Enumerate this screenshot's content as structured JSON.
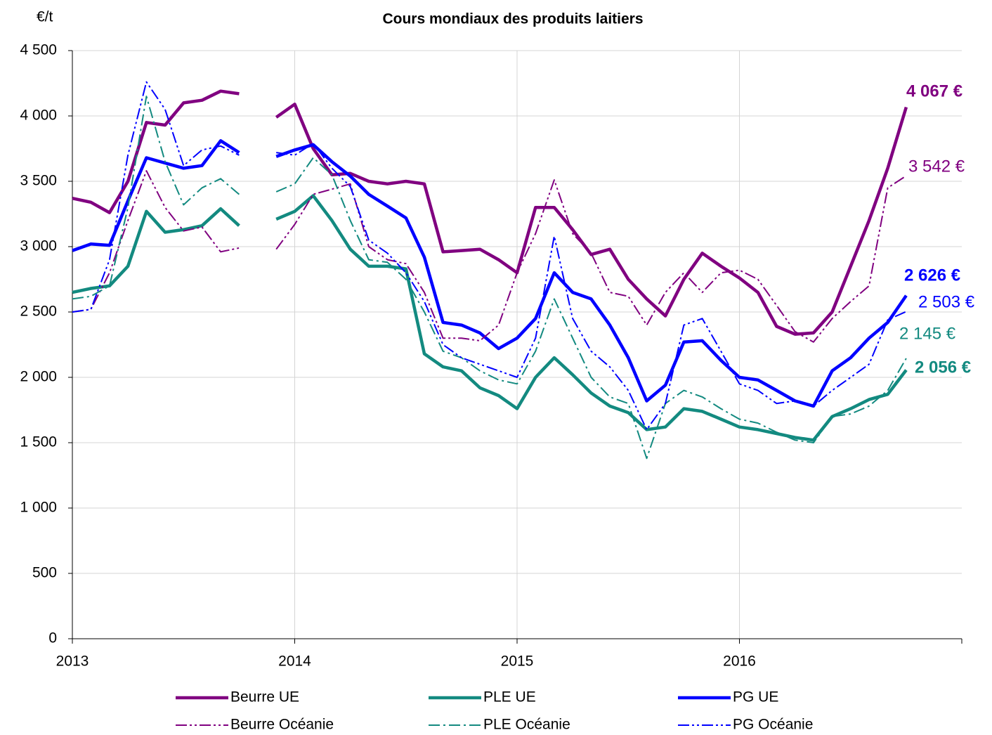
{
  "chart_data": {
    "type": "line",
    "title": "Cours mondiaux des produits laitiers",
    "y_label": "€/t",
    "x": [
      2013,
      2013.083,
      2013.167,
      2013.25,
      2013.333,
      2013.417,
      2013.5,
      2013.583,
      2013.667,
      2013.75,
      2013.833,
      2013.917,
      2014,
      2014.083,
      2014.167,
      2014.25,
      2014.333,
      2014.417,
      2014.5,
      2014.583,
      2014.667,
      2014.75,
      2014.833,
      2014.917,
      2015,
      2015.083,
      2015.167,
      2015.25,
      2015.333,
      2015.417,
      2015.5,
      2015.583,
      2015.667,
      2015.75,
      2015.833,
      2015.917,
      2016,
      2016.083,
      2016.167,
      2016.25,
      2016.333,
      2016.417,
      2016.5,
      2016.583,
      2016.667,
      2016.75
    ],
    "xlim": [
      2013,
      2017
    ],
    "xticks": [
      2013,
      2014,
      2015,
      2016
    ],
    "ylim": [
      0,
      4500
    ],
    "yticks": [
      0,
      500,
      {
        "value": 1000,
        "label": "1 000"
      },
      {
        "value": 1500,
        "label": "1 500"
      },
      {
        "value": 2000,
        "label": "2 000"
      },
      {
        "value": 2500,
        "label": "2 500"
      },
      {
        "value": 3000,
        "label": "3 000"
      },
      {
        "value": 3500,
        "label": "3 500"
      },
      {
        "value": 4000,
        "label": "4 000"
      },
      {
        "value": 4500,
        "label": "4 500"
      }
    ],
    "grid": true,
    "series": [
      {
        "name": "Beurre UE",
        "color": "#800080",
        "style": "solid",
        "width": 4.5,
        "end_label": "4 067 €",
        "bold_label": true,
        "values": [
          3370,
          3340,
          3260,
          3500,
          3950,
          3930,
          4100,
          4120,
          4190,
          4170,
          null,
          3990,
          4090,
          3750,
          3550,
          3560,
          3500,
          3480,
          3500,
          3480,
          2960,
          2970,
          2980,
          2900,
          2800,
          3300,
          3300,
          3130,
          2940,
          2980,
          2750,
          2600,
          2470,
          2750,
          2950,
          2850,
          2760,
          2650,
          2390,
          2330,
          2340,
          2500,
          2850,
          3200,
          3600,
          4067
        ]
      },
      {
        "name": "PLE UE",
        "color": "#138a80",
        "style": "solid",
        "width": 4.5,
        "end_label": "2 056 €",
        "bold_label": true,
        "values": [
          2650,
          2680,
          2700,
          2850,
          3270,
          3110,
          3130,
          3160,
          3290,
          3160,
          null,
          3210,
          3270,
          3390,
          3200,
          2980,
          2850,
          2850,
          2830,
          2180,
          2080,
          2050,
          1920,
          1860,
          1760,
          2000,
          2150,
          2020,
          1880,
          1780,
          1730,
          1600,
          1620,
          1760,
          1740,
          1680,
          1620,
          1600,
          1570,
          1540,
          1520,
          1700,
          1760,
          1830,
          1870,
          2056
        ]
      },
      {
        "name": "PG UE",
        "color": "#0000ff",
        "style": "solid",
        "width": 4.5,
        "end_label": "2 626 €",
        "bold_label": true,
        "values": [
          2970,
          3020,
          3010,
          3350,
          3680,
          3640,
          3600,
          3620,
          3810,
          3720,
          null,
          3690,
          3740,
          3780,
          3650,
          3540,
          3400,
          3310,
          3220,
          2920,
          2420,
          2400,
          2340,
          2220,
          2300,
          2450,
          2800,
          2650,
          2600,
          2400,
          2150,
          1820,
          1940,
          2270,
          2280,
          2130,
          2000,
          1980,
          1900,
          1820,
          1780,
          2050,
          2150,
          2300,
          2420,
          2626
        ]
      },
      {
        "name": "Beurre Océanie",
        "color": "#800080",
        "style": "dashdotdot",
        "width": 2,
        "end_label": "3 542 €",
        "bold_label": false,
        "values": [
          2500,
          2520,
          2800,
          3200,
          3580,
          3300,
          3120,
          3150,
          2960,
          2990,
          null,
          2980,
          3170,
          3400,
          3440,
          3480,
          3000,
          2900,
          2870,
          2650,
          2300,
          2300,
          2280,
          2400,
          2800,
          3100,
          3510,
          3100,
          2950,
          2650,
          2620,
          2400,
          2650,
          2800,
          2650,
          2800,
          2820,
          2750,
          2550,
          2350,
          2270,
          2450,
          2580,
          2700,
          3450,
          3542
        ]
      },
      {
        "name": "PLE Océanie",
        "color": "#138a80",
        "style": "dashdot",
        "width": 2,
        "end_label": "2 145 €",
        "bold_label": false,
        "values": [
          2600,
          2620,
          2700,
          3300,
          4150,
          3650,
          3320,
          3450,
          3520,
          3400,
          null,
          3420,
          3480,
          3680,
          3550,
          3200,
          2900,
          2880,
          2750,
          2500,
          2200,
          2150,
          2050,
          1980,
          1950,
          2200,
          2600,
          2300,
          2000,
          1850,
          1800,
          1380,
          1800,
          1900,
          1850,
          1760,
          1680,
          1650,
          1580,
          1520,
          1500,
          1700,
          1720,
          1780,
          1900,
          2145
        ]
      },
      {
        "name": "PG Océanie",
        "color": "#0000ff",
        "style": "dashdotdot",
        "width": 2,
        "end_label": "2 503 €",
        "bold_label": false,
        "values": [
          2500,
          2520,
          2900,
          3700,
          4260,
          4050,
          3620,
          3740,
          3770,
          3700,
          null,
          3720,
          3700,
          3790,
          3600,
          3460,
          3050,
          2950,
          2800,
          2580,
          2250,
          2150,
          2100,
          2050,
          2000,
          2300,
          3080,
          2450,
          2200,
          2080,
          1900,
          1600,
          1800,
          2400,
          2450,
          2200,
          1950,
          1900,
          1800,
          1820,
          1780,
          1900,
          2000,
          2100,
          2440,
          2503
        ]
      }
    ]
  }
}
